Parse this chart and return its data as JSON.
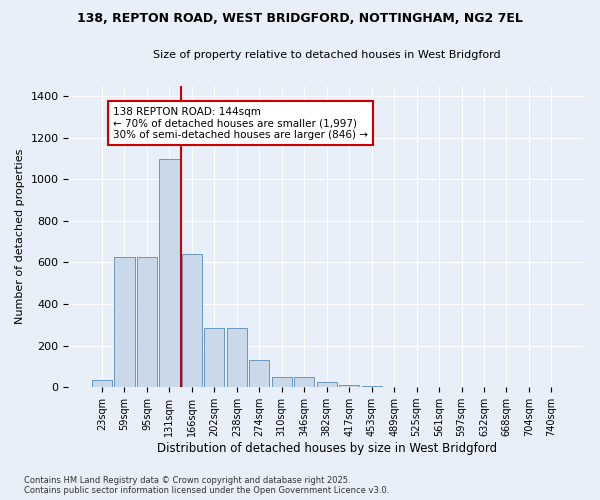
{
  "title_line1": "138, REPTON ROAD, WEST BRIDGFORD, NOTTINGHAM, NG2 7EL",
  "title_line2": "Size of property relative to detached houses in West Bridgford",
  "xlabel": "Distribution of detached houses by size in West Bridgford",
  "ylabel": "Number of detached properties",
  "bin_labels": [
    "23sqm",
    "59sqm",
    "95sqm",
    "131sqm",
    "166sqm",
    "202sqm",
    "238sqm",
    "274sqm",
    "310sqm",
    "346sqm",
    "382sqm",
    "417sqm",
    "453sqm",
    "489sqm",
    "525sqm",
    "561sqm",
    "597sqm",
    "632sqm",
    "668sqm",
    "704sqm",
    "740sqm"
  ],
  "bar_heights": [
    35,
    625,
    625,
    1100,
    640,
    285,
    285,
    130,
    50,
    50,
    25,
    10,
    5,
    2,
    0,
    0,
    0,
    0,
    0,
    0,
    0
  ],
  "bar_color": "#c9d9e9",
  "bar_edge_color": "#6898c0",
  "vline_x": 3.5,
  "vline_color": "#cc0000",
  "annotation_text": "138 REPTON ROAD: 144sqm\n← 70% of detached houses are smaller (1,997)\n30% of semi-detached houses are larger (846) →",
  "annotation_box_color": "#ffffff",
  "annotation_box_edge_color": "#cc0000",
  "ylim": [
    0,
    1450
  ],
  "yticks": [
    0,
    200,
    400,
    600,
    800,
    1000,
    1200,
    1400
  ],
  "bg_color": "#e8eff8",
  "grid_color": "#ffffff",
  "footer_line1": "Contains HM Land Registry data © Crown copyright and database right 2025.",
  "footer_line2": "Contains public sector information licensed under the Open Government Licence v3.0."
}
